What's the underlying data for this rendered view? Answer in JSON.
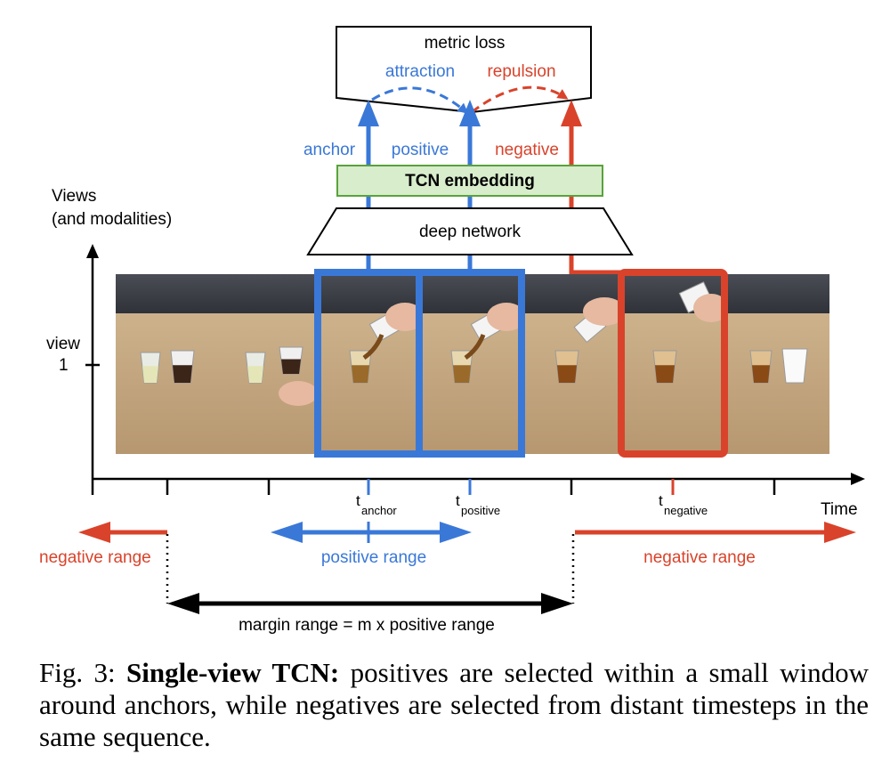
{
  "colors": {
    "blue": "#3a78d8",
    "red": "#d9432b",
    "green_fill": "#d8edcc",
    "green_stroke": "#5aa23c",
    "black": "#000000"
  },
  "labels": {
    "metric_loss": "metric loss",
    "attraction": "attraction",
    "repulsion": "repulsion",
    "anchor": "anchor",
    "positive": "positive",
    "negative": "negative",
    "tcn_embedding": "TCN embedding",
    "deep_network": "deep network",
    "views_line1": "Views",
    "views_line2": "(and modalities)",
    "view_line1": "view",
    "view_line2": "1",
    "time": "Time",
    "t_anchor_main": "t",
    "t_anchor_sub": "anchor",
    "t_positive_main": "t",
    "t_positive_sub": "positive",
    "t_negative_main": "t",
    "t_negative_sub": "negative",
    "negative_range_left": "negative range",
    "positive_range": "positive range",
    "negative_range_right": "negative range",
    "margin_range": "margin range = m x positive range"
  },
  "frames": [
    {
      "scene": "cups-idle"
    },
    {
      "scene": "hand-grab"
    },
    {
      "scene": "pour-start"
    },
    {
      "scene": "pour-mid"
    },
    {
      "scene": "pour-end"
    },
    {
      "scene": "cup-lift"
    },
    {
      "scene": "cups-done"
    }
  ],
  "caption": {
    "prefix": "Fig. 3:",
    "bold": "Single-view TCN:",
    "text": "positives are selected within a small window around anchors, while negatives are selected from distant timesteps in the same sequence."
  }
}
